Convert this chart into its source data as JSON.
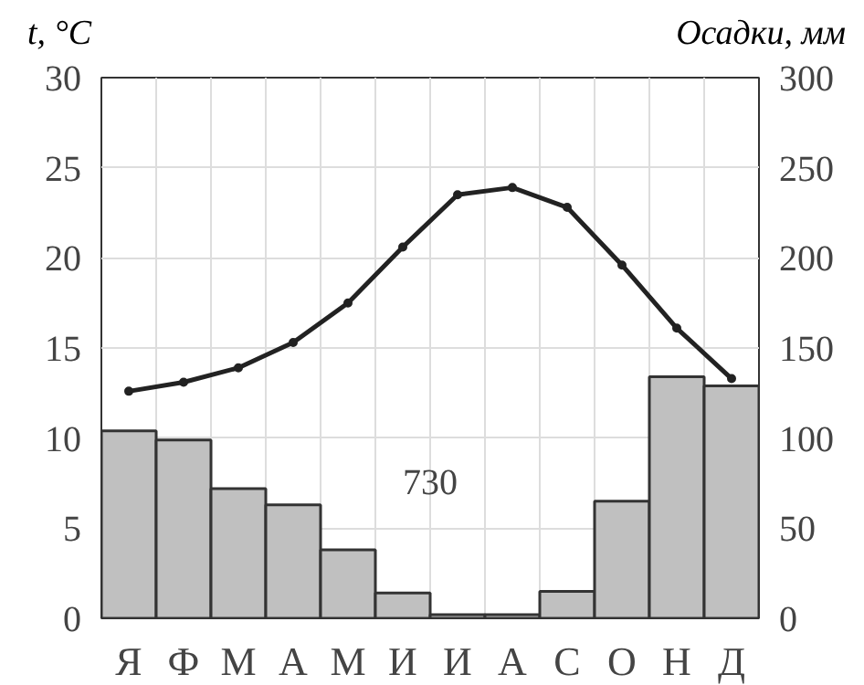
{
  "chart_data": {
    "type": "bar",
    "ylabel": "t, °C",
    "y2label": "Осадки, мм",
    "categories": [
      "Я",
      "Ф",
      "М",
      "А",
      "М",
      "И",
      "И",
      "А",
      "С",
      "О",
      "Н",
      "Д"
    ],
    "series": [
      {
        "axis": "y2",
        "color": "#c0c0c0",
        "values": [
          104,
          99,
          72,
          63,
          38,
          14,
          2,
          2,
          15,
          65,
          134,
          129
        ]
      },
      {
        "type": "line",
        "axis": "y",
        "color": "#222222",
        "marker": "circle",
        "line_style": "solid",
        "values": [
          12.6,
          13.1,
          13.9,
          15.3,
          17.5,
          20.6,
          23.5,
          23.9,
          22.8,
          19.6,
          16.1,
          13.3
        ]
      }
    ],
    "ylim": [
      0,
      30
    ],
    "yticks": [
      0,
      5,
      10,
      15,
      20,
      25,
      30
    ],
    "y2lim": [
      0,
      300
    ],
    "y2ticks": [
      0,
      50,
      100,
      150,
      200,
      250,
      300
    ],
    "grid": true,
    "annotations": [
      "730"
    ]
  }
}
